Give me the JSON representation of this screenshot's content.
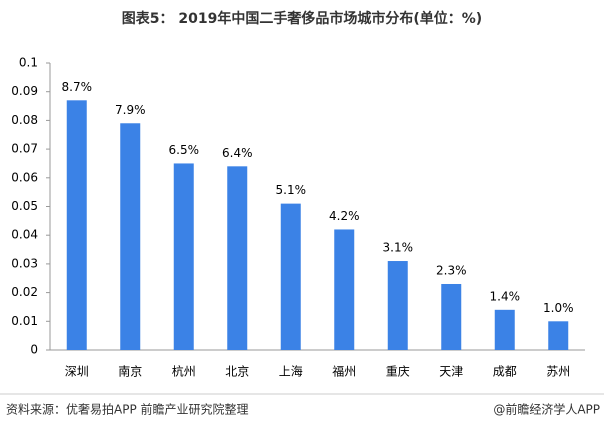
{
  "chart_data": {
    "type": "bar",
    "title": "图表5： 2019年中国二手奢侈品市场城市分布(单位：%)",
    "categories": [
      "深圳",
      "南京",
      "杭州",
      "北京",
      "上海",
      "福州",
      "重庆",
      "天津",
      "成都",
      "苏州"
    ],
    "values": [
      0.087,
      0.079,
      0.065,
      0.064,
      0.051,
      0.042,
      0.031,
      0.023,
      0.014,
      0.01
    ],
    "value_labels": [
      "8.7%",
      "7.9%",
      "6.5%",
      "6.4%",
      "5.1%",
      "4.2%",
      "3.1%",
      "2.3%",
      "1.4%",
      "1.0%"
    ],
    "color": "#3b82e6",
    "ylim": [
      0,
      0.1
    ],
    "yticks": [
      0,
      0.01,
      0.02,
      0.03,
      0.04,
      0.05,
      0.06,
      0.07,
      0.08,
      0.09,
      0.1
    ],
    "grid": false,
    "source": "资料来源：优奢易拍APP 前瞻产业研究院整理",
    "credit": "@前瞻经济学人APP"
  }
}
